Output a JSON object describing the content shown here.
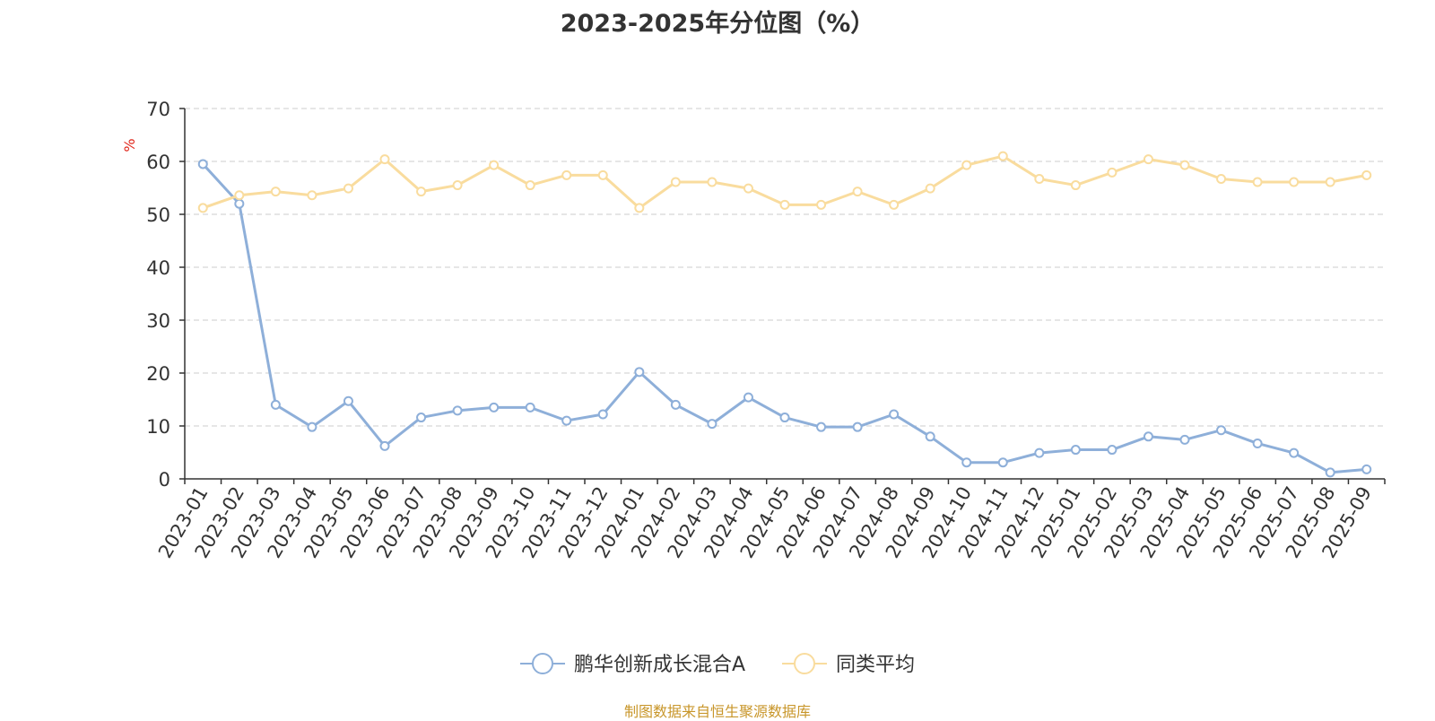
{
  "chart_data": {
    "type": "line",
    "title": "2023-2025年分位图（%）",
    "ylabel": "%",
    "ylim": [
      0,
      70
    ],
    "yticks": [
      0,
      10,
      20,
      30,
      40,
      50,
      60,
      70
    ],
    "grid": true,
    "legend_position": "bottom",
    "categories": [
      "2023-01",
      "2023-02",
      "2023-03",
      "2023-04",
      "2023-05",
      "2023-06",
      "2023-07",
      "2023-08",
      "2023-09",
      "2023-10",
      "2023-11",
      "2023-12",
      "2024-01",
      "2024-02",
      "2024-03",
      "2024-04",
      "2024-05",
      "2024-06",
      "2024-07",
      "2024-08",
      "2024-09",
      "2024-10",
      "2024-11",
      "2024-12",
      "2025-01",
      "2025-02",
      "2025-03",
      "2025-04",
      "2025-05",
      "2025-06",
      "2025-07",
      "2025-08",
      "2025-09"
    ],
    "series": [
      {
        "name": "鹏华创新成长混合A",
        "color": "#8eafd9",
        "values": [
          59.5,
          52.0,
          14.0,
          9.8,
          14.7,
          6.2,
          11.6,
          12.9,
          13.5,
          13.5,
          11.0,
          12.2,
          20.2,
          14.0,
          10.4,
          15.4,
          11.6,
          9.8,
          9.8,
          12.2,
          8.0,
          3.1,
          3.1,
          4.9,
          5.5,
          5.5,
          8.0,
          7.4,
          9.2,
          6.7,
          4.9,
          1.2,
          1.8
        ]
      },
      {
        "name": "同类平均",
        "color": "#f9dc9e",
        "values": [
          51.2,
          53.6,
          54.3,
          53.6,
          54.9,
          60.4,
          54.3,
          55.5,
          59.3,
          55.5,
          57.4,
          57.4,
          51.2,
          56.1,
          56.1,
          54.9,
          51.8,
          51.8,
          54.3,
          51.8,
          54.9,
          59.3,
          61.0,
          56.7,
          55.5,
          57.9,
          60.4,
          59.3,
          56.7,
          56.1,
          56.1,
          56.1,
          57.4
        ]
      }
    ],
    "source": "制图数据来自恒生聚源数据库"
  }
}
